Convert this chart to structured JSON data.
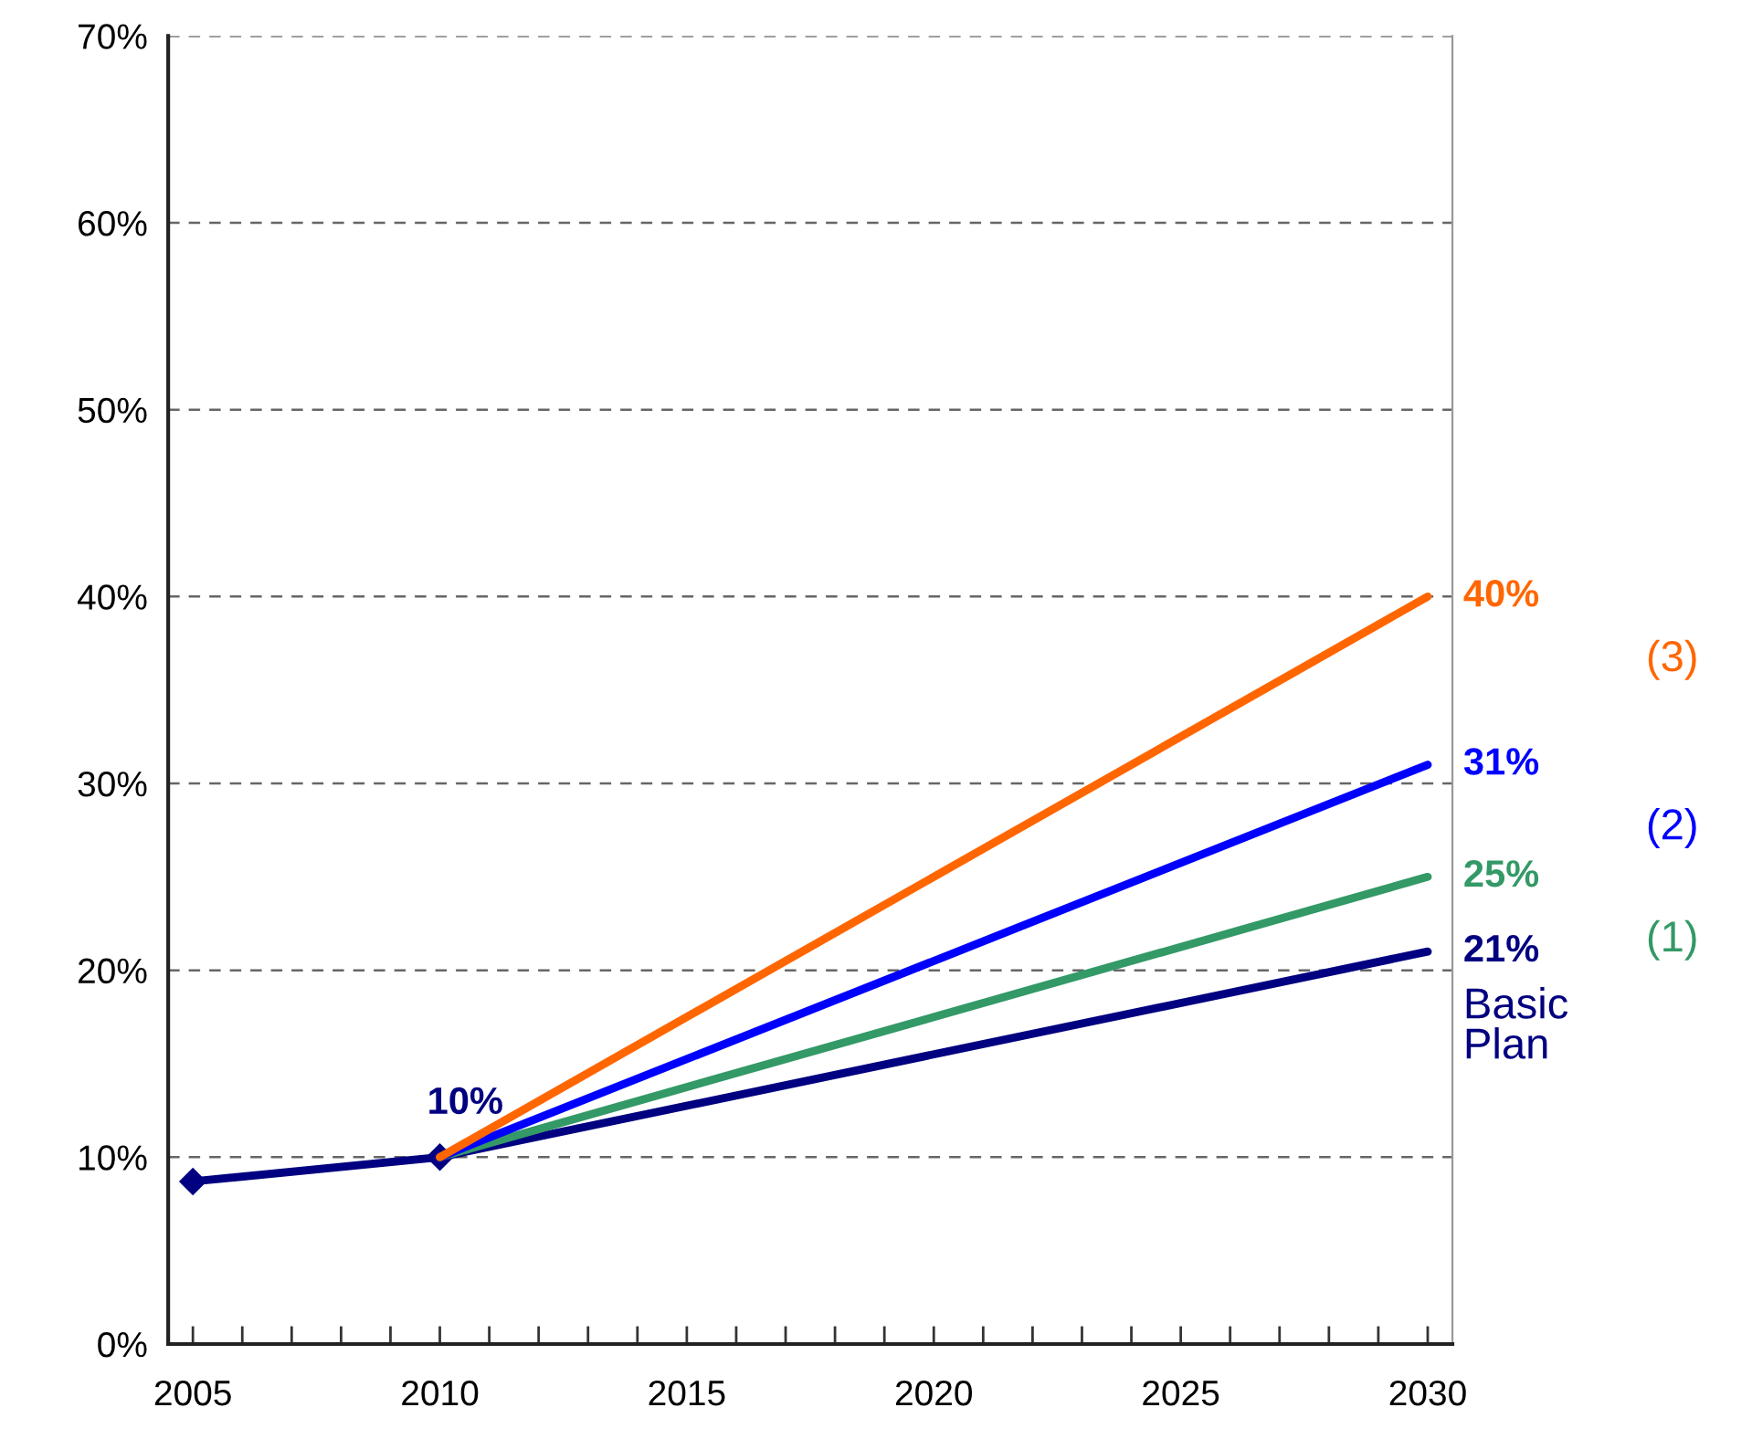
{
  "chart_data": {
    "type": "line",
    "xlim": [
      2004.5,
      2030.5
    ],
    "ylim": [
      0,
      70
    ],
    "xticks": [
      2005,
      {
        "value": 2006,
        "label": null
      },
      {
        "value": 2007,
        "label": null
      },
      {
        "value": 2008,
        "label": null
      },
      {
        "value": 2009,
        "label": null
      },
      2010,
      {
        "value": 2011,
        "label": null
      },
      {
        "value": 2012,
        "label": null
      },
      {
        "value": 2013,
        "label": null
      },
      {
        "value": 2014,
        "label": null
      },
      2015,
      {
        "value": 2016,
        "label": null
      },
      {
        "value": 2017,
        "label": null
      },
      {
        "value": 2018,
        "label": null
      },
      {
        "value": 2019,
        "label": null
      },
      2020,
      {
        "value": 2021,
        "label": null
      },
      {
        "value": 2022,
        "label": null
      },
      {
        "value": 2023,
        "label": null
      },
      {
        "value": 2024,
        "label": null
      },
      2025,
      {
        "value": 2026,
        "label": null
      },
      {
        "value": 2027,
        "label": null
      },
      {
        "value": 2028,
        "label": null
      },
      {
        "value": 2029,
        "label": null
      },
      2030
    ],
    "yticks": [
      {
        "value": 0,
        "label": "0%"
      },
      {
        "value": 10,
        "label": "10%"
      },
      {
        "value": 20,
        "label": "20%"
      },
      {
        "value": 30,
        "label": "30%"
      },
      {
        "value": 40,
        "label": "40%"
      },
      {
        "value": 50,
        "label": "50%"
      },
      {
        "value": 60,
        "label": "60%"
      },
      {
        "value": 70,
        "label": "70%"
      }
    ],
    "grid": "y",
    "legend": false,
    "line_style": "solid",
    "series": [
      {
        "x": [
          2005,
          2010
        ],
        "values": [
          8.7,
          10
        ],
        "color": "#000080",
        "marker": "diamond",
        "value_labels": [
          null,
          "10%"
        ]
      },
      {
        "name": "Basic\nPlan",
        "x": [
          2010,
          2030
        ],
        "values": [
          10,
          21
        ],
        "color": "#000080",
        "value_labels": [
          null,
          "21%"
        ]
      },
      {
        "name": "(1)",
        "x": [
          2010,
          2030
        ],
        "values": [
          10,
          25
        ],
        "color": "#339966",
        "value_labels": [
          null,
          "25%"
        ]
      },
      {
        "name": "(2)",
        "x": [
          2010,
          2030
        ],
        "values": [
          10,
          31
        ],
        "color": "#0000ff",
        "value_labels": [
          null,
          "31%"
        ]
      },
      {
        "name": "(3)",
        "x": [
          2010,
          2030
        ],
        "values": [
          10,
          40
        ],
        "color": "#ff6600",
        "value_labels": [
          null,
          "40%"
        ]
      }
    ]
  }
}
